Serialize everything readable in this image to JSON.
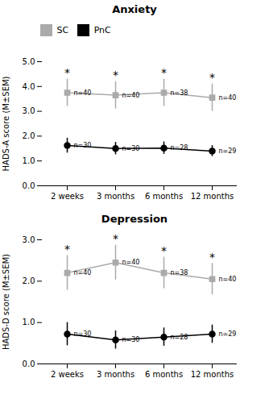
{
  "chart_data": [
    {
      "type": "line",
      "title": "Anxiety",
      "ylabel": "HADS-A score (M±SEM)",
      "ylim": [
        0,
        5
      ],
      "yticks": [
        0,
        1,
        2,
        3,
        4,
        5
      ],
      "categories": [
        "2 weeks",
        "3 months",
        "6 months",
        "12 months"
      ],
      "legend": "right",
      "series": [
        {
          "name": "SC",
          "color": "#aaaaaa",
          "marker": "square",
          "values": [
            3.75,
            3.65,
            3.75,
            3.55
          ],
          "errors": [
            0.55,
            0.55,
            0.55,
            0.55
          ],
          "n": [
            "n=40",
            "n=40",
            "n=38",
            "n=40"
          ]
        },
        {
          "name": "PnC",
          "color": "#000000",
          "marker": "circle",
          "values": [
            1.62,
            1.5,
            1.52,
            1.4
          ],
          "errors": [
            0.3,
            0.25,
            0.25,
            0.22
          ],
          "n": [
            "n=30",
            "n=30",
            "n=28",
            "n=29"
          ]
        }
      ],
      "annotations": [
        {
          "text": "*",
          "x": "2 weeks",
          "series": "SC"
        },
        {
          "text": "*",
          "x": "3 months",
          "series": "SC"
        },
        {
          "text": "*",
          "x": "6 months",
          "series": "SC"
        },
        {
          "text": "*",
          "x": "12 months",
          "series": "SC"
        }
      ]
    },
    {
      "type": "line",
      "title": "Depression",
      "ylabel": "HADS-D score (M±SEM)",
      "ylim": [
        0,
        3
      ],
      "yticks": [
        0,
        1,
        2,
        3
      ],
      "categories": [
        "2 weeks",
        "3 months",
        "6 months",
        "12 months"
      ],
      "series": [
        {
          "name": "SC",
          "color": "#aaaaaa",
          "marker": "square",
          "values": [
            2.2,
            2.45,
            2.2,
            2.05
          ],
          "errors": [
            0.42,
            0.42,
            0.38,
            0.38
          ],
          "n": [
            "n=40",
            "n=40",
            "n=38",
            "n=40"
          ]
        },
        {
          "name": "PnC",
          "color": "#000000",
          "marker": "circle",
          "values": [
            0.72,
            0.58,
            0.65,
            0.72
          ],
          "errors": [
            0.28,
            0.22,
            0.22,
            0.22
          ],
          "n": [
            "n=30",
            "n=30",
            "n=28",
            "n=29"
          ]
        }
      ],
      "annotations": [
        {
          "text": "*",
          "x": "2 weeks",
          "series": "SC"
        },
        {
          "text": "*",
          "x": "3 months",
          "series": "SC"
        },
        {
          "text": "*",
          "x": "6 months",
          "series": "SC"
        },
        {
          "text": "*",
          "x": "12 months",
          "series": "SC"
        }
      ]
    }
  ]
}
